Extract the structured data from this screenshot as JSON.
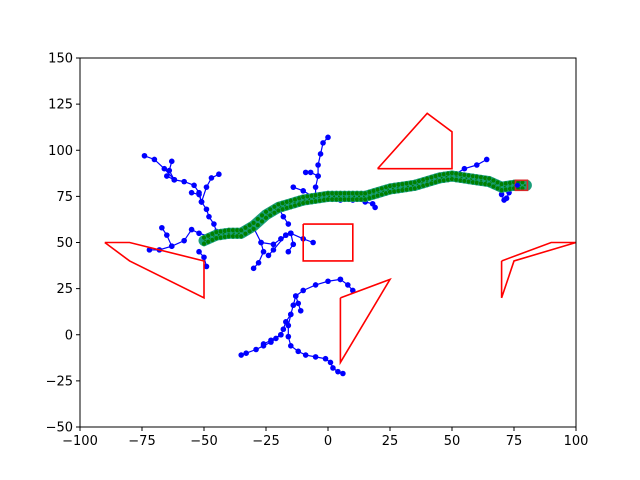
{
  "chart_data": {
    "type": "scatter",
    "title": "",
    "xlabel": "",
    "ylabel": "",
    "xlim": [
      -100,
      100
    ],
    "ylim": [
      -50,
      150
    ],
    "grid": false,
    "xticks": [
      -100,
      -75,
      -50,
      -25,
      0,
      25,
      50,
      75,
      100
    ],
    "yticks": [
      -50,
      -25,
      0,
      25,
      50,
      75,
      100,
      125,
      150
    ],
    "xtick_labels": [
      "−100",
      "−75",
      "−50",
      "−25",
      "0",
      "25",
      "50",
      "75",
      "100"
    ],
    "ytick_labels": [
      "−50",
      "−25",
      "0",
      "25",
      "50",
      "75",
      "100",
      "125",
      "150"
    ],
    "colors": {
      "tree": "#0000ff",
      "path_point": "#008000",
      "path_band": "#1a9e7a",
      "obstacle": "#ff0000",
      "goal": "#d62728"
    },
    "obstacles": [
      [
        [
          -90,
          50
        ],
        [
          -80,
          50
        ],
        [
          -50,
          40
        ],
        [
          -50,
          20
        ],
        [
          -80,
          40
        ],
        [
          -90,
          50
        ]
      ],
      [
        [
          -10,
          60
        ],
        [
          10,
          60
        ],
        [
          10,
          40
        ],
        [
          -10,
          40
        ],
        [
          -10,
          60
        ]
      ],
      [
        [
          20,
          90
        ],
        [
          40,
          120
        ],
        [
          50,
          110
        ],
        [
          50,
          90
        ],
        [
          20,
          90
        ]
      ],
      [
        [
          5,
          20
        ],
        [
          25,
          30
        ],
        [
          5,
          -15
        ],
        [
          5,
          20
        ]
      ],
      [
        [
          70,
          40
        ],
        [
          90,
          50
        ],
        [
          100,
          50
        ],
        [
          75,
          40
        ],
        [
          70,
          20
        ],
        [
          70,
          40
        ]
      ]
    ],
    "path": [
      [
        -50,
        51
      ],
      [
        -45,
        54
      ],
      [
        -40,
        55
      ],
      [
        -35,
        55
      ],
      [
        -30,
        59
      ],
      [
        -25,
        65
      ],
      [
        -20,
        69
      ],
      [
        -15,
        71
      ],
      [
        -10,
        73
      ],
      [
        -5,
        74
      ],
      [
        0,
        75
      ],
      [
        5,
        75
      ],
      [
        10,
        75
      ],
      [
        15,
        75
      ],
      [
        20,
        77
      ],
      [
        25,
        79
      ],
      [
        30,
        80
      ],
      [
        35,
        81
      ],
      [
        40,
        83
      ],
      [
        45,
        85
      ],
      [
        50,
        86
      ],
      [
        55,
        85
      ],
      [
        60,
        84
      ],
      [
        65,
        83
      ],
      [
        70,
        80
      ],
      [
        75,
        81
      ],
      [
        80,
        81
      ]
    ],
    "tree_branches": [
      [
        [
          -47,
          53
        ],
        [
          -52,
          55
        ],
        [
          -55,
          57
        ],
        [
          -58,
          51
        ],
        [
          -63,
          48
        ],
        [
          -68,
          46
        ],
        [
          -72,
          46
        ]
      ],
      [
        [
          -63,
          48
        ],
        [
          -65,
          54
        ],
        [
          -67,
          58
        ]
      ],
      [
        [
          -52,
          45
        ],
        [
          -50,
          42
        ],
        [
          -49,
          37
        ]
      ],
      [
        [
          -45,
          56
        ],
        [
          -46,
          60
        ],
        [
          -48,
          64
        ],
        [
          -49,
          68
        ],
        [
          -51,
          72
        ],
        [
          -52,
          76
        ],
        [
          -55,
          77
        ]
      ],
      [
        [
          -51,
          72
        ],
        [
          -52,
          77
        ],
        [
          -54,
          81
        ],
        [
          -58,
          83
        ],
        [
          -62,
          84
        ],
        [
          -65,
          86
        ]
      ],
      [
        [
          -51,
          72
        ],
        [
          -49,
          80
        ],
        [
          -47,
          85
        ],
        [
          -44,
          87
        ]
      ],
      [
        [
          -62,
          84
        ],
        [
          -66,
          90
        ],
        [
          -70,
          95
        ],
        [
          -74,
          97
        ]
      ],
      [
        [
          -62,
          84
        ],
        [
          -64,
          89
        ],
        [
          -63,
          94
        ]
      ],
      [
        [
          -30,
          58
        ],
        [
          -27,
          50
        ],
        [
          -26,
          45
        ],
        [
          -28,
          39
        ],
        [
          -30,
          36
        ]
      ],
      [
        [
          -27,
          50
        ],
        [
          -22,
          49
        ],
        [
          -19,
          52
        ],
        [
          -17,
          54
        ],
        [
          -15,
          55
        ]
      ],
      [
        [
          -15,
          55
        ],
        [
          -14,
          49
        ],
        [
          -16,
          45
        ]
      ],
      [
        [
          -17,
          54
        ],
        [
          -22,
          46
        ],
        [
          -24,
          43
        ]
      ],
      [
        [
          -5,
          74
        ],
        [
          -5,
          80
        ],
        [
          -4,
          86
        ],
        [
          -4,
          92
        ],
        [
          -3,
          98
        ],
        [
          -2,
          104
        ],
        [
          0,
          107
        ]
      ],
      [
        [
          -4,
          86
        ],
        [
          -7,
          88
        ],
        [
          -9,
          88
        ]
      ],
      [
        [
          -5,
          74
        ],
        [
          -10,
          78
        ],
        [
          -14,
          80
        ]
      ],
      [
        [
          -15,
          55
        ],
        [
          -10,
          52
        ],
        [
          -6,
          50
        ]
      ],
      [
        [
          -20,
          69
        ],
        [
          -18,
          64
        ],
        [
          -16,
          60
        ]
      ],
      [
        [
          0,
          75
        ],
        [
          5,
          73
        ],
        [
          10,
          73
        ],
        [
          15,
          72
        ],
        [
          18,
          71
        ],
        [
          19,
          69
        ]
      ],
      [
        [
          5,
          30
        ],
        [
          0,
          29
        ],
        [
          -5,
          27
        ],
        [
          -10,
          24
        ],
        [
          -13,
          21
        ],
        [
          -14,
          16
        ],
        [
          -15,
          11
        ],
        [
          -17,
          7
        ],
        [
          -18,
          3
        ],
        [
          -19,
          0
        ],
        [
          -21,
          -2
        ],
        [
          -23,
          -4
        ],
        [
          -26,
          -6
        ],
        [
          -29,
          -8
        ],
        [
          -33,
          -10
        ],
        [
          -35,
          -11
        ]
      ],
      [
        [
          -15,
          11
        ],
        [
          -16,
          5
        ],
        [
          -16,
          -1
        ],
        [
          -15,
          -6
        ],
        [
          -12,
          -9
        ],
        [
          -9,
          -11
        ],
        [
          -5,
          -12
        ],
        [
          -1,
          -13
        ],
        [
          1,
          -15
        ],
        [
          2,
          -18
        ],
        [
          4,
          -20
        ],
        [
          6,
          -21
        ]
      ],
      [
        [
          -19,
          0
        ],
        [
          -23,
          -3
        ],
        [
          -26,
          -5
        ]
      ],
      [
        [
          -13,
          21
        ],
        [
          -12,
          17
        ],
        [
          -11,
          13
        ]
      ],
      [
        [
          5,
          30
        ],
        [
          8,
          27
        ],
        [
          10,
          24
        ]
      ],
      [
        [
          50,
          86
        ],
        [
          55,
          90
        ],
        [
          60,
          92
        ],
        [
          64,
          95
        ]
      ],
      [
        [
          65,
          83
        ],
        [
          68,
          80
        ],
        [
          70,
          76
        ],
        [
          71,
          73
        ]
      ],
      [
        [
          75,
          81
        ],
        [
          73,
          77
        ],
        [
          72,
          74
        ]
      ]
    ],
    "start": [
      78,
      81
    ],
    "goal": [
      78,
      81
    ]
  }
}
